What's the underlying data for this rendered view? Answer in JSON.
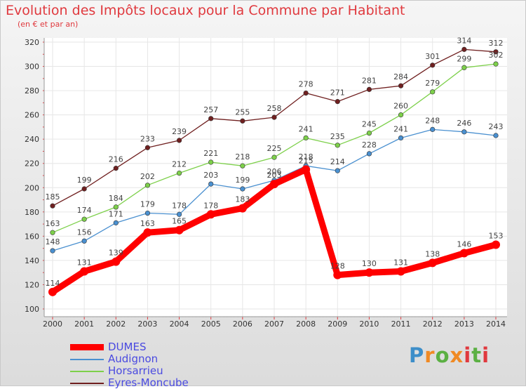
{
  "chart_data": {
    "type": "line",
    "title": "Evolution des Impôts locaux pour la Commune par Habitant",
    "subtitle": "(en € et par an)",
    "x": [
      "2000",
      "2001",
      "2002",
      "2003",
      "2004",
      "2005",
      "2006",
      "2007",
      "2008",
      "2009",
      "2010",
      "2011",
      "2012",
      "2013",
      "2014"
    ],
    "ylim": [
      100,
      320
    ],
    "yticks": [
      100,
      120,
      140,
      160,
      180,
      200,
      220,
      240,
      260,
      280,
      300,
      320
    ],
    "grid": true,
    "legend_position": "bottom-left",
    "series": [
      {
        "name": "DUMES",
        "color": "#ff0000",
        "values": [
          114,
          131,
          139,
          163,
          165,
          178,
          183,
          203,
          215,
          128,
          130,
          131,
          138,
          146,
          153
        ]
      },
      {
        "name": "Audignon",
        "color": "#4a90d0",
        "values": [
          148,
          156,
          171,
          179,
          178,
          203,
          199,
          206,
          218,
          214,
          228,
          241,
          248,
          246,
          243
        ]
      },
      {
        "name": "Horsarrieu",
        "color": "#7dd04a",
        "values": [
          163,
          174,
          184,
          202,
          212,
          221,
          218,
          225,
          241,
          235,
          245,
          260,
          279,
          299,
          302
        ]
      },
      {
        "name": "Eyres-Moncube",
        "color": "#702020",
        "values": [
          185,
          199,
          216,
          233,
          239,
          257,
          255,
          258,
          278,
          271,
          281,
          284,
          301,
          314,
          312
        ]
      }
    ]
  },
  "branding": {
    "logo_text": "Proxiti"
  },
  "legend": {
    "text_color": "#4a4ae0"
  }
}
